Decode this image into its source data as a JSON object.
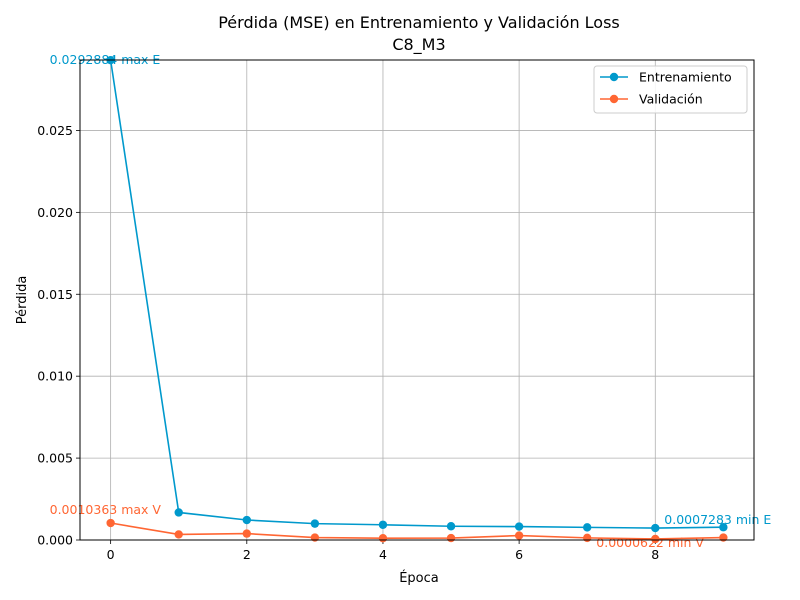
{
  "chart_data": {
    "type": "line",
    "title": "Pérdida (MSE) en Entrenamiento y Validación Loss",
    "subtitle": "C8_M3",
    "xlabel": "Época",
    "ylabel": "Pérdida",
    "xlim": [
      -0.45,
      9.45
    ],
    "ylim": [
      0,
      0.0293
    ],
    "grid": true,
    "legend_position": "top-right",
    "x_ticks": [
      "0",
      "2",
      "4",
      "6",
      "8"
    ],
    "y_ticks": [
      "0.000",
      "0.005",
      "0.010",
      "0.015",
      "0.020",
      "0.025"
    ],
    "x": [
      0,
      1,
      2,
      3,
      4,
      5,
      6,
      7,
      8,
      9
    ],
    "series": [
      {
        "name": "Entrenamiento",
        "color": "#0099cc",
        "values": [
          0.0292884,
          0.00168,
          0.00122,
          0.001,
          0.00093,
          0.00084,
          0.00082,
          0.00077,
          0.0007283,
          0.00078
        ]
      },
      {
        "name": "Validación",
        "color": "#ff6633",
        "values": [
          0.0010363,
          0.00034,
          0.00039,
          0.00015,
          0.00011,
          0.00012,
          0.00027,
          0.00013,
          6.22e-05,
          0.00015
        ]
      }
    ],
    "annotations": [
      {
        "text": "0.0292884 max E",
        "x": 0,
        "y": 0.0292884,
        "series": 0
      },
      {
        "text": "0.0007283 min E",
        "x": 8,
        "y": 0.0007283,
        "series": 0
      },
      {
        "text": "0.0010363 max V",
        "x": 0,
        "y": 0.0010363,
        "series": 1
      },
      {
        "text": "0.0000622 min V",
        "x": 8,
        "y": 6.22e-05,
        "series": 1
      }
    ]
  }
}
